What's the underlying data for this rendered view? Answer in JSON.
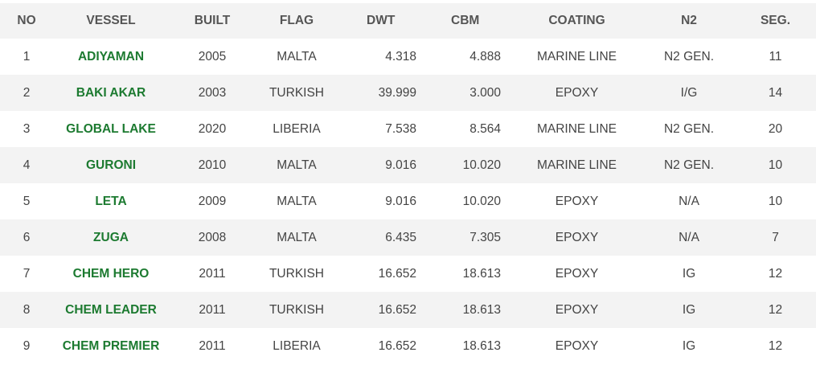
{
  "table": {
    "headers": [
      "NO",
      "VESSEL",
      "BUILT",
      "FLAG",
      "DWT",
      "CBM",
      "COATING",
      "N2",
      "SEG."
    ],
    "rows": [
      [
        "1",
        "ADIYAMAN",
        "2005",
        "MALTA",
        "4.318",
        "4.888",
        "MARINE LINE",
        "N2 GEN.",
        "11"
      ],
      [
        "2",
        "BAKI AKAR",
        "2003",
        "TURKISH",
        "39.999",
        "3.000",
        "EPOXY",
        "I/G",
        "14"
      ],
      [
        "3",
        "GLOBAL LAKE",
        "2020",
        "LIBERIA",
        "7.538",
        "8.564",
        "MARINE LINE",
        "N2 GEN.",
        "20"
      ],
      [
        "4",
        "GURONI",
        "2010",
        "MALTA",
        "9.016",
        "10.020",
        "MARINE LINE",
        "N2 GEN.",
        "10"
      ],
      [
        "5",
        "LETA",
        "2009",
        "MALTA",
        "9.016",
        "10.020",
        "EPOXY",
        "N/A",
        "10"
      ],
      [
        "6",
        "ZUGA",
        "2008",
        "MALTA",
        "6.435",
        "7.305",
        "EPOXY",
        "N/A",
        "7"
      ],
      [
        "7",
        "CHEM HERO",
        "2011",
        "TURKISH",
        "16.652",
        "18.613",
        "EPOXY",
        "IG",
        "12"
      ],
      [
        "8",
        "CHEM LEADER",
        "2011",
        "TURKISH",
        "16.652",
        "18.613",
        "EPOXY",
        "IG",
        "12"
      ],
      [
        "9",
        "CHEM PREMIER",
        "2011",
        "LIBERIA",
        "16.652",
        "18.613",
        "EPOXY",
        "IG",
        "12"
      ]
    ]
  }
}
